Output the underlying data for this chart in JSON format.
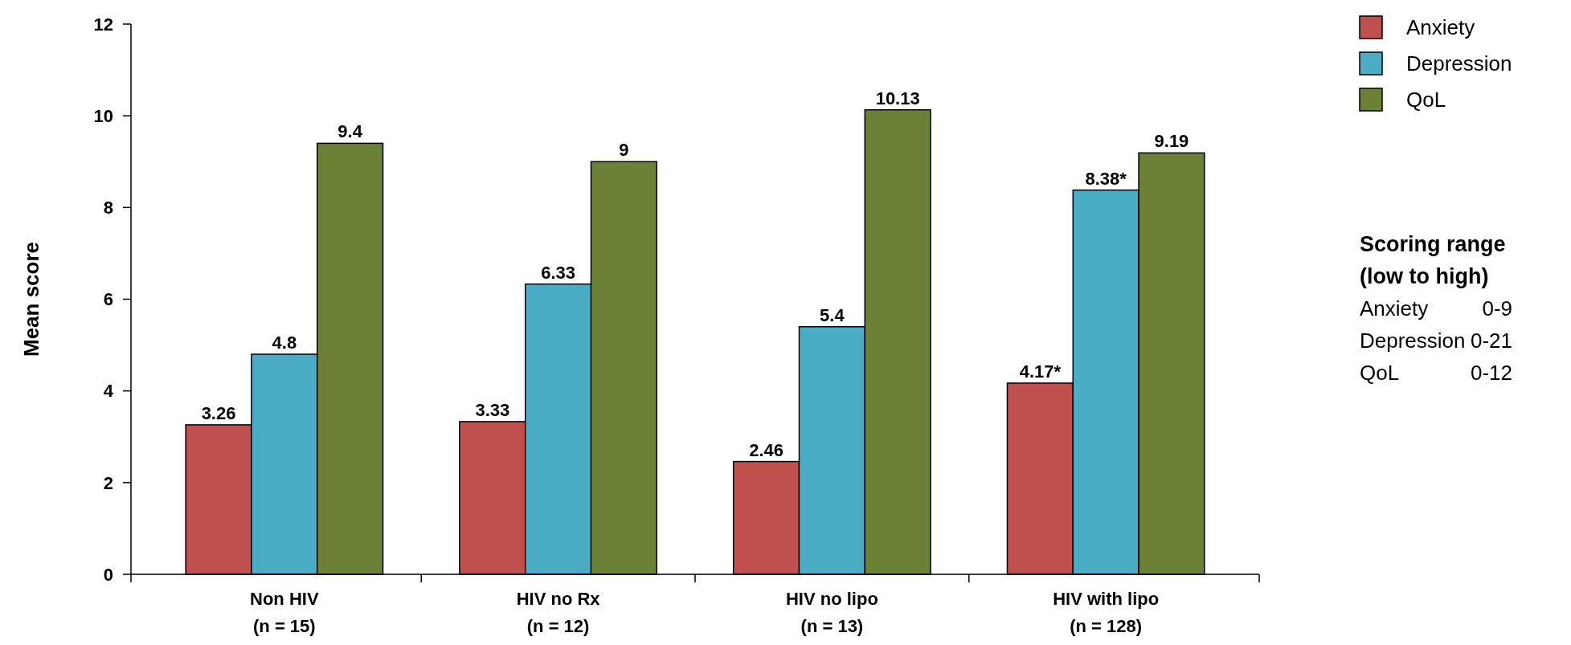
{
  "chart_data": {
    "type": "bar",
    "ylabel": "Mean score",
    "categories": [
      "Non HIV\n(n = 15)",
      "HIV no Rx\n(n = 12)",
      "HIV no lipo\n(n = 13)",
      "HIV with lipo\n(n = 128)"
    ],
    "series": [
      {
        "name": "Anxiety",
        "color": "#c0504d",
        "values": [
          3.26,
          3.33,
          2.46,
          4.17
        ],
        "value_labels": [
          "3.26",
          "3.33",
          "2.46",
          "4.17*"
        ]
      },
      {
        "name": "Depression",
        "color": "#4bacc6",
        "values": [
          4.8,
          6.33,
          5.4,
          8.38
        ],
        "value_labels": [
          "4.8",
          "6.33",
          "5.4",
          "8.38*"
        ]
      },
      {
        "name": "QoL",
        "color": "#6a8136",
        "values": [
          9.4,
          9,
          10.13,
          9.19
        ],
        "value_labels": [
          "9.4",
          "9",
          "10.13",
          "9.19"
        ]
      }
    ],
    "ylim": [
      0,
      12
    ],
    "yticks": [
      0,
      2,
      4,
      6,
      8,
      10,
      12
    ],
    "grid": false,
    "legend": "top right",
    "annotations": [
      "Scoring range\n(low to high)",
      "Anxiety\t0-9",
      "Depression\t0-21",
      "QoL\t0-12"
    ]
  }
}
